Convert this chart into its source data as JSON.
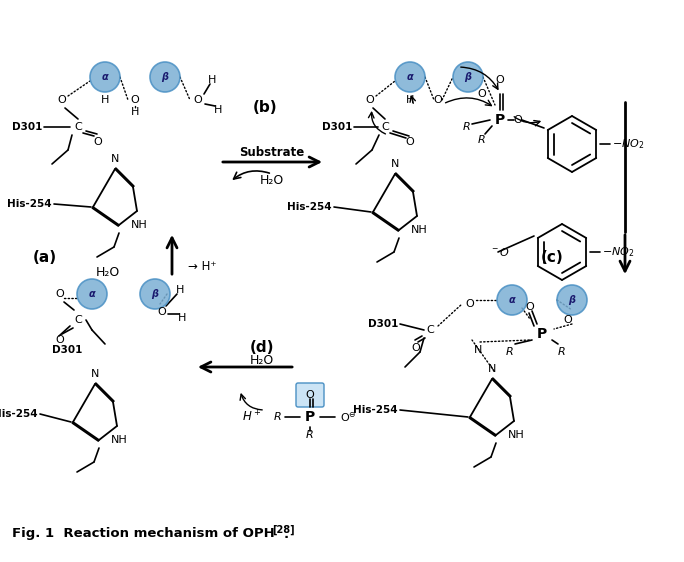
{
  "title": "Fig. 1  Reaction mechanism of OPH",
  "title_superscript": "[28]",
  "background_color": "#ffffff",
  "blue_circle_color": "#7bafd4",
  "blue_circle_edge": "#4a90c4",
  "label_a": "(a)",
  "label_b": "(b)",
  "label_c": "(c)",
  "label_d": "(d)"
}
